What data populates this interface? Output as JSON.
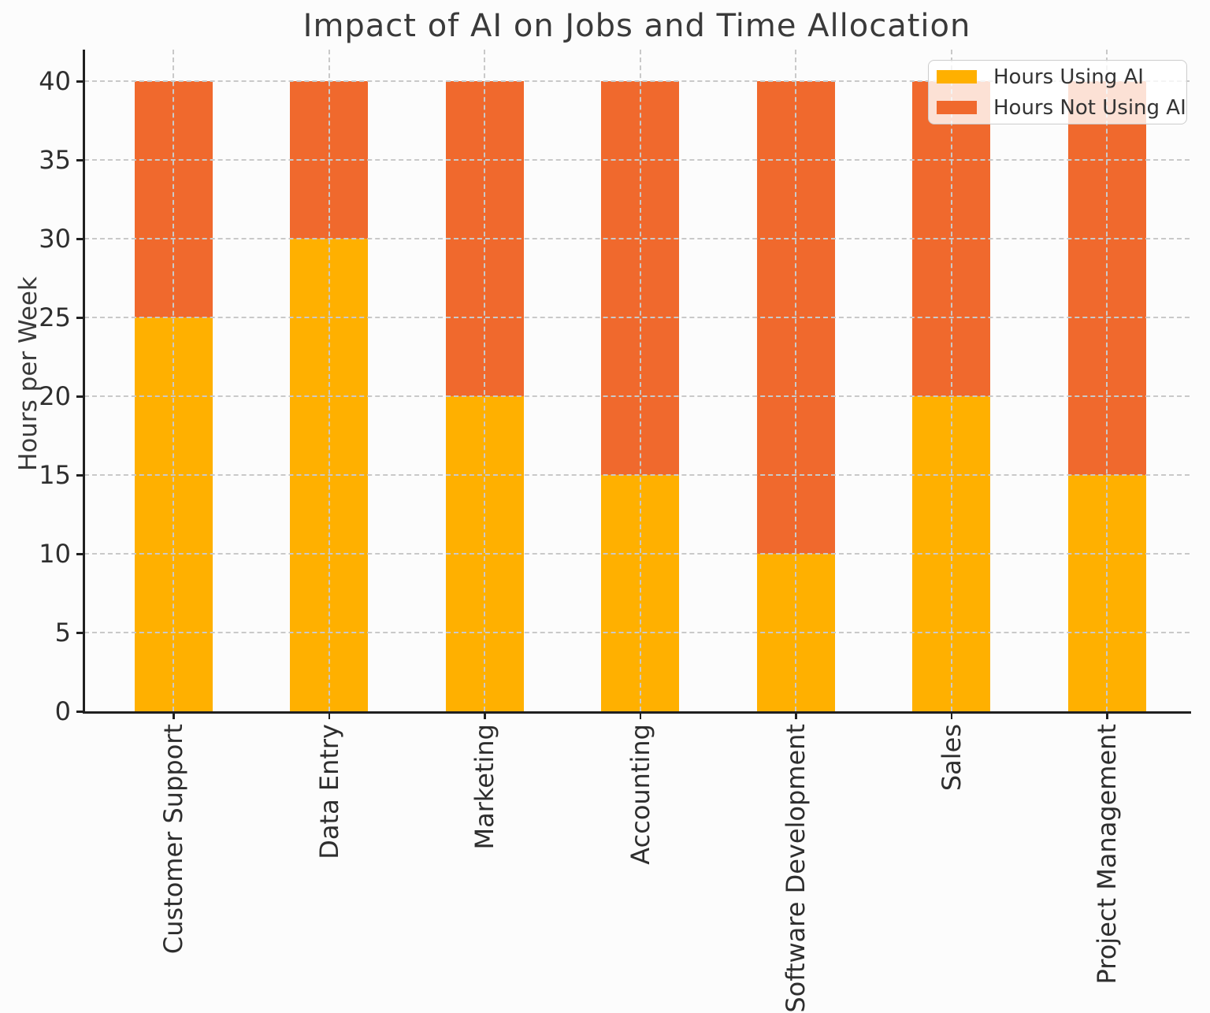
{
  "figure": {
    "background": "#fcfcfc"
  },
  "chart_data": {
    "type": "bar",
    "stacked": true,
    "title": "Impact of AI on Jobs and Time Allocation",
    "xlabel": "",
    "ylabel": "Hours per Week",
    "categories": [
      "Customer Support",
      "Data Entry",
      "Marketing",
      "Accounting",
      "Software Development",
      "Sales",
      "Project Management"
    ],
    "series": [
      {
        "name": "Hours Using AI",
        "color": "#FFB000",
        "values": [
          25,
          30,
          20,
          15,
          10,
          20,
          15
        ]
      },
      {
        "name": "Hours Not Using AI",
        "color": "#F0692D",
        "values": [
          15,
          10,
          20,
          25,
          30,
          20,
          25
        ]
      }
    ],
    "totals": [
      40,
      40,
      40,
      40,
      40,
      40,
      40
    ],
    "ylim": [
      0,
      40
    ],
    "yticks": [
      0,
      5,
      10,
      15,
      20,
      25,
      30,
      35,
      40
    ],
    "grid": "dashed",
    "grid_color": "#c9c9c9",
    "legend_position": "upper right"
  }
}
